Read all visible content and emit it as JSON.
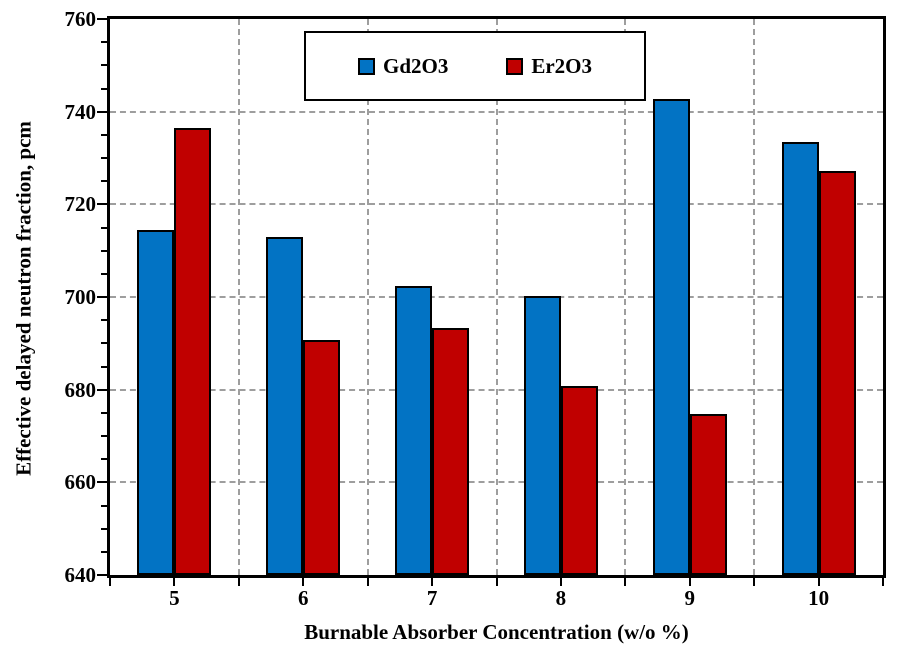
{
  "figure": {
    "background": "#ffffff"
  },
  "axes": {
    "y_title": "Effective delayed neutron fraction, pcm",
    "x_title": "Burnable Absorber Concentration (w/o %)"
  },
  "legend": {
    "items": [
      {
        "label": "Gd2O3",
        "color": "#0273C4"
      },
      {
        "label": "Er2O3",
        "color": "#C00000"
      }
    ]
  },
  "chart_data": {
    "type": "bar",
    "title": "",
    "categories": [
      "5",
      "6",
      "7",
      "8",
      "9",
      "10"
    ],
    "series": [
      {
        "name": "Gd2O3",
        "color": "#0273C4",
        "values": [
          714.5,
          712.9,
          702.4,
          700.3,
          742.7,
          733.4
        ]
      },
      {
        "name": "Er2O3",
        "color": "#C00000",
        "values": [
          736.4,
          690.7,
          693.4,
          680.7,
          674.7,
          727.3
        ]
      }
    ],
    "xlabel": "Burnable Absorber Concentration (w/o %)",
    "ylabel": "Effective delayed neutron fraction, pcm",
    "ylim": [
      640,
      760
    ],
    "y_major_ticks": [
      640,
      660,
      680,
      700,
      720,
      740,
      760
    ],
    "y_minor_step": 5,
    "grid": "dashed horizontal at major y ticks (660-740) and dashed vertical at category boundaries",
    "legend_position": "top-center inside plot",
    "bar_border_color": "#000000",
    "grid_color": "#9e9e9e"
  }
}
